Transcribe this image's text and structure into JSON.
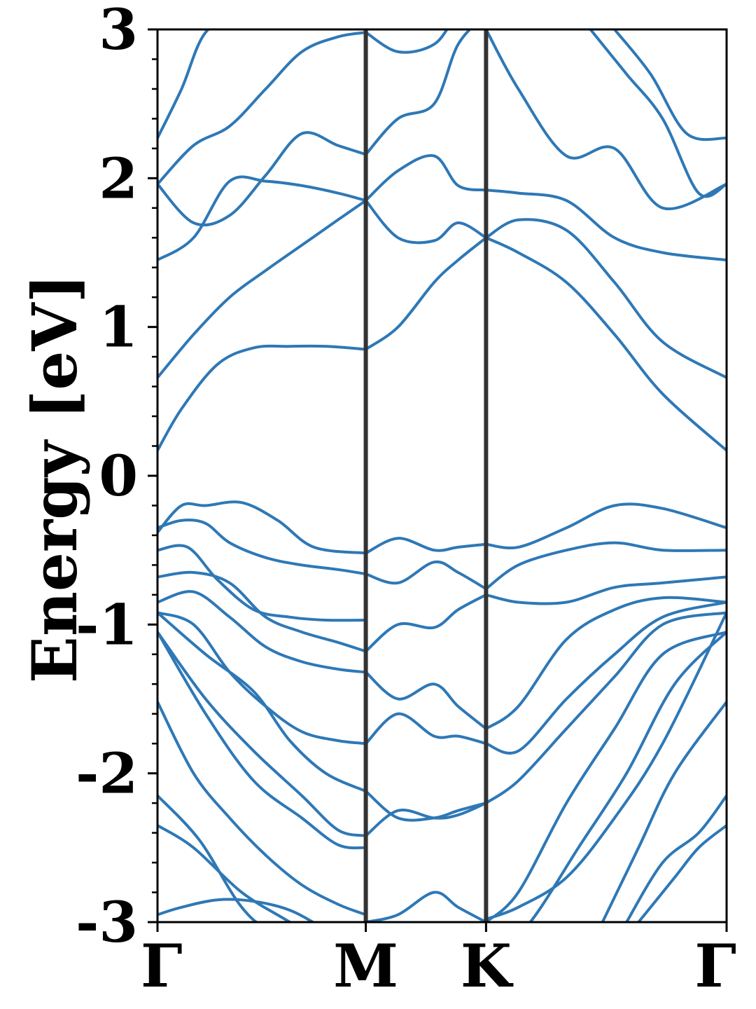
{
  "chart_data": {
    "type": "line",
    "title": "",
    "xlabel": "",
    "ylabel": "Energy [eV]",
    "ylim": [
      -3,
      3
    ],
    "yticks": [
      -3,
      -2,
      -1,
      0,
      1,
      2,
      3
    ],
    "ytick_labels": [
      "-3",
      "-2",
      "-1",
      "0",
      "1",
      "2",
      "3"
    ],
    "x_path": [
      0,
      1.732,
      2.732,
      4.732
    ],
    "x_path_labels": [
      "Γ",
      "M",
      "K",
      "Γ"
    ],
    "grid": false,
    "line_color": "#2e78b6",
    "vline_color": "#333333",
    "series": [
      {
        "x": [
          0,
          0.2,
          0.5,
          0.8,
          1.1,
          1.4,
          1.732
        ],
        "values": [
          -2.95,
          -2.9,
          -2.85,
          -2.86,
          -2.92,
          -3.05,
          -3.2
        ]
      },
      {
        "x": [
          0,
          0.3,
          0.7,
          1.1,
          1.5,
          1.732
        ],
        "values": [
          -2.35,
          -2.5,
          -2.8,
          -3.0,
          -3.2,
          -3.3
        ]
      },
      {
        "x": [
          0,
          0.35,
          0.7,
          1.0,
          1.732
        ],
        "values": [
          -2.15,
          -2.45,
          -2.9,
          -3.1,
          -3.5
        ]
      },
      {
        "x": [
          0,
          0.3,
          0.6,
          0.9,
          1.2,
          1.5,
          1.732
        ],
        "values": [
          -1.52,
          -2.0,
          -2.3,
          -2.55,
          -2.75,
          -2.88,
          -2.95
        ]
      },
      {
        "x": [
          0,
          0.4,
          0.8,
          1.2,
          1.5,
          1.732
        ],
        "values": [
          -1.05,
          -1.6,
          -2.05,
          -2.3,
          -2.48,
          -2.5
        ]
      },
      {
        "x": [
          0,
          0.4,
          0.8,
          1.2,
          1.5,
          1.732
        ],
        "values": [
          -1.05,
          -1.5,
          -1.85,
          -2.15,
          -2.38,
          -2.42
        ]
      },
      {
        "x": [
          0,
          0.4,
          0.8,
          1.1,
          1.4,
          1.732
        ],
        "values": [
          -0.92,
          -1.2,
          -1.45,
          -1.78,
          -2.0,
          -2.12
        ]
      },
      {
        "x": [
          0,
          0.3,
          0.6,
          0.9,
          1.2,
          1.5,
          1.732
        ],
        "values": [
          -0.92,
          -1.0,
          -1.32,
          -1.55,
          -1.72,
          -1.78,
          -1.8
        ]
      },
      {
        "x": [
          0,
          0.3,
          0.6,
          0.9,
          1.2,
          1.5,
          1.732
        ],
        "values": [
          -0.85,
          -0.78,
          -0.95,
          -1.15,
          -1.25,
          -1.3,
          -1.32
        ]
      },
      {
        "x": [
          0,
          0.3,
          0.6,
          0.9,
          1.2,
          1.5,
          1.732
        ],
        "values": [
          -0.68,
          -0.65,
          -0.72,
          -0.95,
          -1.05,
          -1.12,
          -1.18
        ]
      },
      {
        "x": [
          0,
          0.25,
          0.5,
          0.8,
          1.1,
          1.4,
          1.732
        ],
        "values": [
          -0.5,
          -0.48,
          -0.7,
          -0.9,
          -0.95,
          -0.97,
          -0.97
        ]
      },
      {
        "x": [
          0,
          0.2,
          0.4,
          0.6,
          0.9,
          1.2,
          1.5,
          1.732
        ],
        "values": [
          -0.35,
          -0.3,
          -0.32,
          -0.45,
          -0.55,
          -0.6,
          -0.63,
          -0.66
        ]
      },
      {
        "x": [
          0,
          0.2,
          0.4,
          0.7,
          1.0,
          1.3,
          1.732
        ],
        "values": [
          -0.38,
          -0.2,
          -0.2,
          -0.18,
          -0.3,
          -0.48,
          -0.52
        ]
      },
      {
        "x": [
          0,
          0.2,
          0.5,
          0.8,
          1.1,
          1.4,
          1.732
        ],
        "values": [
          0.17,
          0.45,
          0.75,
          0.86,
          0.87,
          0.87,
          0.85
        ]
      },
      {
        "x": [
          0,
          0.3,
          0.6,
          0.9,
          1.2,
          1.5,
          1.732
        ],
        "values": [
          0.66,
          0.95,
          1.2,
          1.38,
          1.55,
          1.72,
          1.85
        ]
      },
      {
        "x": [
          0,
          0.3,
          0.6,
          0.9,
          1.2,
          1.5,
          1.732
        ],
        "values": [
          1.45,
          1.6,
          1.98,
          1.98,
          1.95,
          1.9,
          1.85
        ]
      },
      {
        "x": [
          0,
          0.3,
          0.6,
          0.9,
          1.2,
          1.5,
          1.732
        ],
        "values": [
          1.96,
          1.7,
          1.75,
          2.02,
          2.3,
          2.22,
          2.16
        ]
      },
      {
        "x": [
          0,
          0.3,
          0.6,
          0.9,
          1.2,
          1.5,
          1.732
        ],
        "values": [
          1.96,
          2.22,
          2.35,
          2.6,
          2.85,
          2.95,
          2.98
        ]
      },
      {
        "x": [
          0,
          0.2,
          0.4,
          0.7,
          1.0,
          1.732
        ],
        "values": [
          2.27,
          2.6,
          2.98,
          3.1,
          3.2,
          3.3
        ]
      },
      {
        "x": [
          1.732,
          2.0,
          2.3,
          2.5,
          2.732
        ],
        "values": [
          -3.0,
          -2.95,
          -2.8,
          -2.9,
          -3.0
        ]
      },
      {
        "x": [
          1.732,
          2.0,
          2.3,
          2.5,
          2.732
        ],
        "values": [
          -2.42,
          -2.25,
          -2.3,
          -2.28,
          -2.2
        ]
      },
      {
        "x": [
          1.732,
          2.0,
          2.3,
          2.5,
          2.732
        ],
        "values": [
          -2.12,
          -2.3,
          -2.3,
          -2.25,
          -2.2
        ]
      },
      {
        "x": [
          1.732,
          2.0,
          2.3,
          2.5,
          2.732
        ],
        "values": [
          -1.8,
          -1.6,
          -1.75,
          -1.75,
          -1.8
        ]
      },
      {
        "x": [
          1.732,
          2.0,
          2.3,
          2.5,
          2.732
        ],
        "values": [
          -1.32,
          -1.5,
          -1.4,
          -1.55,
          -1.7
        ]
      },
      {
        "x": [
          1.732,
          2.0,
          2.3,
          2.5,
          2.732
        ],
        "values": [
          -1.18,
          -1.0,
          -1.02,
          -0.9,
          -0.8
        ]
      },
      {
        "x": [
          1.732,
          2.0,
          2.3,
          2.5,
          2.732
        ],
        "values": [
          -0.66,
          -0.72,
          -0.58,
          -0.65,
          -0.76
        ]
      },
      {
        "x": [
          1.732,
          2.0,
          2.3,
          2.5,
          2.732
        ],
        "values": [
          -0.52,
          -0.42,
          -0.5,
          -0.48,
          -0.46
        ]
      },
      {
        "x": [
          1.732,
          2.0,
          2.3,
          2.5,
          2.732
        ],
        "values": [
          0.85,
          1.0,
          1.3,
          1.45,
          1.6
        ]
      },
      {
        "x": [
          1.732,
          2.0,
          2.3,
          2.5,
          2.732
        ],
        "values": [
          1.85,
          1.6,
          1.58,
          1.7,
          1.6
        ]
      },
      {
        "x": [
          1.732,
          2.0,
          2.3,
          2.5,
          2.732
        ],
        "values": [
          1.85,
          2.05,
          2.15,
          1.95,
          1.92
        ]
      },
      {
        "x": [
          1.732,
          2.0,
          2.3,
          2.5,
          2.732
        ],
        "values": [
          2.16,
          2.4,
          2.5,
          2.9,
          3.1
        ]
      },
      {
        "x": [
          1.732,
          2.0,
          2.3,
          2.5,
          2.732
        ],
        "values": [
          2.98,
          2.85,
          2.9,
          3.1,
          3.2
        ]
      },
      {
        "x": [
          2.732,
          3.0,
          3.4,
          3.8,
          4.2,
          4.732
        ],
        "values": [
          -2.98,
          -2.9,
          -2.7,
          -2.3,
          -1.8,
          -0.92
        ]
      },
      {
        "x": [
          2.732,
          3.0,
          3.4,
          3.8,
          4.2,
          4.732
        ],
        "values": [
          -2.2,
          -2.05,
          -1.7,
          -1.35,
          -1.0,
          -0.92
        ]
      },
      {
        "x": [
          2.732,
          3.0,
          3.4,
          3.8,
          4.2,
          4.732
        ],
        "values": [
          -1.8,
          -1.85,
          -1.5,
          -1.2,
          -0.95,
          -0.85
        ]
      },
      {
        "x": [
          2.732,
          3.0,
          3.4,
          3.8,
          4.2,
          4.732
        ],
        "values": [
          -1.7,
          -1.55,
          -1.1,
          -0.9,
          -0.82,
          -0.85
        ]
      },
      {
        "x": [
          2.732,
          3.0,
          3.4,
          3.8,
          4.2,
          4.732
        ],
        "values": [
          -0.8,
          -0.85,
          -0.85,
          -0.75,
          -0.72,
          -0.68
        ]
      },
      {
        "x": [
          2.732,
          3.0,
          3.4,
          3.8,
          4.2,
          4.732
        ],
        "values": [
          -0.76,
          -0.6,
          -0.5,
          -0.45,
          -0.5,
          -0.5
        ]
      },
      {
        "x": [
          2.732,
          3.0,
          3.4,
          3.8,
          4.2,
          4.732
        ],
        "values": [
          -0.46,
          -0.48,
          -0.35,
          -0.2,
          -0.22,
          -0.35
        ]
      },
      {
        "x": [
          2.732,
          3.0,
          3.4,
          3.8,
          4.2,
          4.732
        ],
        "values": [
          -3.0,
          -2.8,
          -2.2,
          -1.7,
          -1.2,
          -1.05
        ]
      },
      {
        "x": [
          2.732,
          3.1,
          3.5,
          3.9,
          4.3,
          4.732
        ],
        "values": [
          -3.3,
          -3.0,
          -2.5,
          -2.0,
          -1.4,
          -1.05
        ]
      },
      {
        "x": [
          3.7,
          4.0,
          4.3,
          4.732
        ],
        "values": [
          -3.0,
          -2.5,
          -2.0,
          -1.52
        ]
      },
      {
        "x": [
          3.9,
          4.2,
          4.5,
          4.732
        ],
        "values": [
          -3.0,
          -2.6,
          -2.4,
          -2.15
        ]
      },
      {
        "x": [
          4.0,
          4.3,
          4.5,
          4.732
        ],
        "values": [
          -3.0,
          -2.7,
          -2.5,
          -2.35
        ]
      },
      {
        "x": [
          2.732,
          3.0,
          3.4,
          3.8,
          4.2,
          4.732
        ],
        "values": [
          1.6,
          1.5,
          1.3,
          0.95,
          0.55,
          0.17
        ]
      },
      {
        "x": [
          2.732,
          3.0,
          3.4,
          3.8,
          4.2,
          4.732
        ],
        "values": [
          1.6,
          1.72,
          1.65,
          1.3,
          0.9,
          0.66
        ]
      },
      {
        "x": [
          2.732,
          3.0,
          3.4,
          3.8,
          4.2,
          4.732
        ],
        "values": [
          1.92,
          1.9,
          1.85,
          1.6,
          1.5,
          1.45
        ]
      },
      {
        "x": [
          2.732,
          3.0,
          3.4,
          3.8,
          4.2,
          4.732
        ],
        "values": [
          3.0,
          2.6,
          2.15,
          2.2,
          1.8,
          1.96
        ]
      },
      {
        "x": [
          3.6,
          3.9,
          4.2,
          4.5,
          4.732
        ],
        "values": [
          3.0,
          2.7,
          2.4,
          1.9,
          1.96
        ]
      },
      {
        "x": [
          3.8,
          4.1,
          4.4,
          4.732
        ],
        "values": [
          3.0,
          2.7,
          2.3,
          2.27
        ]
      }
    ]
  }
}
